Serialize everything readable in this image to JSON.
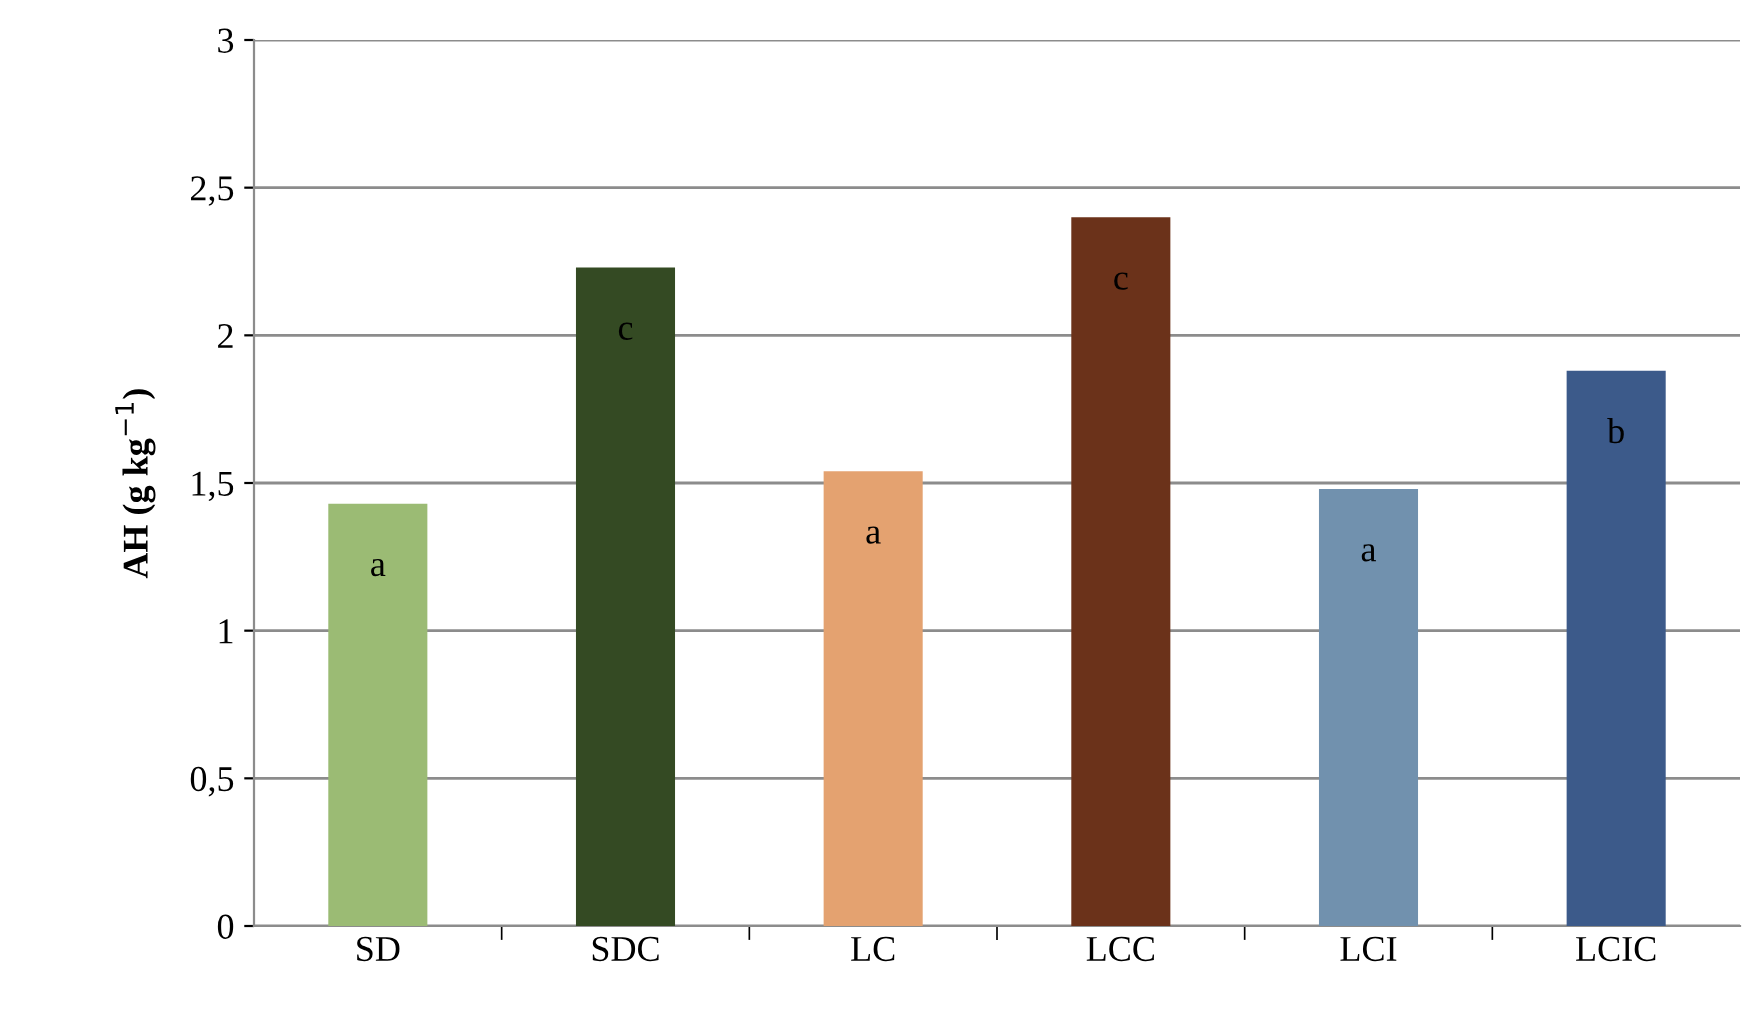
{
  "chart_data": {
    "type": "bar",
    "ylabel": "AH (g kg$^{−1}$)",
    "categories": [
      "SD",
      "SDC",
      "LC",
      "LCC",
      "LCI",
      "LCIC"
    ],
    "values": [
      1.43,
      2.23,
      1.54,
      2.4,
      1.48,
      1.88
    ],
    "colors": [
      "#9bbb74",
      "#344a23",
      "#e4a270",
      "#6b321a",
      "#7191ae",
      "#3c5a8a"
    ],
    "ylim": [
      0,
      3
    ],
    "yticks": [
      {
        "value": 0,
        "label": "0"
      },
      {
        "value": 0.5,
        "label": "0,5"
      },
      {
        "value": 1,
        "label": "1"
      },
      {
        "value": 1.5,
        "label": "1,5"
      },
      {
        "value": 2,
        "label": "2"
      },
      {
        "value": 2.5,
        "label": "2,5"
      },
      {
        "value": 3,
        "label": "3"
      }
    ],
    "grid": "y",
    "annotations": [
      {
        "text": "a",
        "x": "SD",
        "y": 1.43
      },
      {
        "text": "c",
        "x": "SDC",
        "y": 2.23
      },
      {
        "text": "a",
        "x": "LC",
        "y": 1.54
      },
      {
        "text": "c",
        "x": "LCC",
        "y": 2.4
      },
      {
        "text": "a",
        "x": "LCI",
        "y": 1.48
      },
      {
        "text": "b",
        "x": "LCIC",
        "y": 1.88
      }
    ]
  }
}
